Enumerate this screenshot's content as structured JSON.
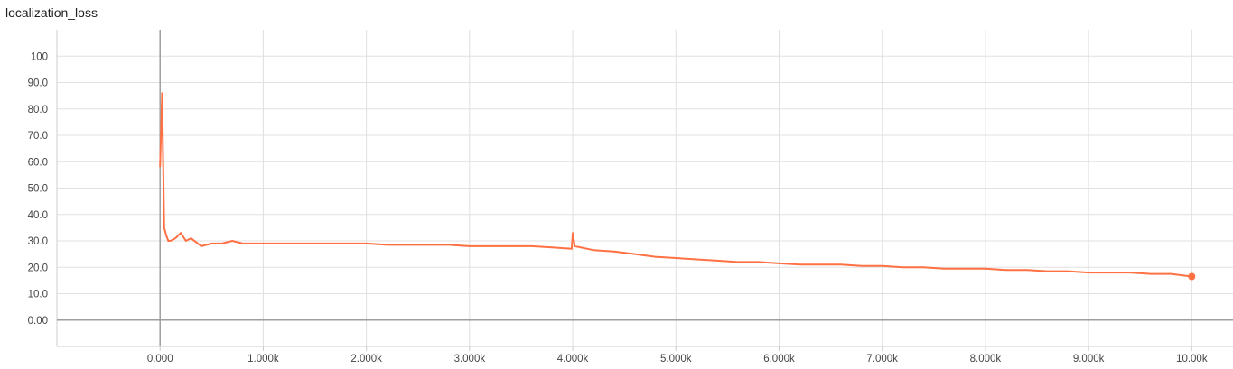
{
  "chart_data": {
    "type": "line",
    "title": "localization_loss",
    "xlabel": "",
    "ylabel": "",
    "xlim": [
      -1000,
      10400
    ],
    "ylim": [
      -10,
      110
    ],
    "grid": true,
    "x_ticks": [
      0,
      1000,
      2000,
      3000,
      4000,
      5000,
      6000,
      7000,
      8000,
      9000,
      10000
    ],
    "x_tick_labels": [
      "0.000",
      "1.000k",
      "2.000k",
      "3.000k",
      "4.000k",
      "5.000k",
      "6.000k",
      "7.000k",
      "8.000k",
      "9.000k",
      "10.00k"
    ],
    "y_ticks": [
      0,
      10,
      20,
      30,
      40,
      50,
      60,
      70,
      80,
      90,
      100
    ],
    "y_tick_labels": [
      "0.00",
      "10.0",
      "20.0",
      "30.0",
      "40.0",
      "50.0",
      "60.0",
      "70.0",
      "80.0",
      "90.0",
      "100"
    ],
    "series": [
      {
        "name": "",
        "color": "#ff7043",
        "points": [
          [
            0,
            58
          ],
          [
            20,
            86
          ],
          [
            30,
            60
          ],
          [
            40,
            35
          ],
          [
            60,
            32
          ],
          [
            80,
            30
          ],
          [
            100,
            30
          ],
          [
            150,
            31
          ],
          [
            200,
            33
          ],
          [
            250,
            30
          ],
          [
            300,
            31
          ],
          [
            400,
            28
          ],
          [
            500,
            29
          ],
          [
            600,
            29
          ],
          [
            700,
            30
          ],
          [
            800,
            29
          ],
          [
            900,
            29
          ],
          [
            1000,
            29
          ],
          [
            1200,
            29
          ],
          [
            1400,
            29
          ],
          [
            1600,
            29
          ],
          [
            1800,
            29
          ],
          [
            2000,
            29
          ],
          [
            2200,
            28.5
          ],
          [
            2400,
            28.5
          ],
          [
            2600,
            28.5
          ],
          [
            2800,
            28.5
          ],
          [
            3000,
            28
          ],
          [
            3200,
            28
          ],
          [
            3400,
            28
          ],
          [
            3600,
            28
          ],
          [
            3800,
            27.5
          ],
          [
            3990,
            27
          ],
          [
            4000,
            33
          ],
          [
            4020,
            28
          ],
          [
            4200,
            26.5
          ],
          [
            4400,
            26
          ],
          [
            4600,
            25
          ],
          [
            4800,
            24
          ],
          [
            5000,
            23.5
          ],
          [
            5200,
            23
          ],
          [
            5400,
            22.5
          ],
          [
            5600,
            22
          ],
          [
            5800,
            22
          ],
          [
            6000,
            21.5
          ],
          [
            6200,
            21
          ],
          [
            6400,
            21
          ],
          [
            6600,
            21
          ],
          [
            6800,
            20.5
          ],
          [
            7000,
            20.5
          ],
          [
            7200,
            20
          ],
          [
            7400,
            20
          ],
          [
            7600,
            19.5
          ],
          [
            7800,
            19.5
          ],
          [
            8000,
            19.5
          ],
          [
            8200,
            19
          ],
          [
            8400,
            19
          ],
          [
            8600,
            18.5
          ],
          [
            8800,
            18.5
          ],
          [
            9000,
            18
          ],
          [
            9200,
            18
          ],
          [
            9400,
            18
          ],
          [
            9600,
            17.5
          ],
          [
            9800,
            17.5
          ],
          [
            10000,
            16.5
          ]
        ]
      }
    ]
  }
}
